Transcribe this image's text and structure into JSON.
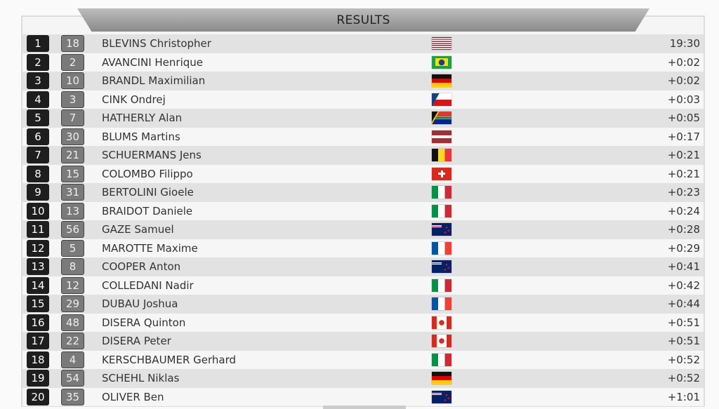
{
  "header": {
    "title": "RESULTS"
  },
  "results": [
    {
      "rank": "1",
      "bib": "18",
      "name": "BLEVINS Christopher",
      "flag": "us",
      "time": "19:30"
    },
    {
      "rank": "2",
      "bib": "2",
      "name": "AVANCINI Henrique",
      "flag": "br",
      "time": "+0:02"
    },
    {
      "rank": "3",
      "bib": "10",
      "name": "BRANDL Maximilian",
      "flag": "de",
      "time": "+0:02"
    },
    {
      "rank": "4",
      "bib": "3",
      "name": "CINK Ondrej",
      "flag": "cz",
      "time": "+0:03"
    },
    {
      "rank": "5",
      "bib": "7",
      "name": "HATHERLY Alan",
      "flag": "za",
      "time": "+0:05"
    },
    {
      "rank": "6",
      "bib": "30",
      "name": "BLUMS Martins",
      "flag": "lv",
      "time": "+0:17"
    },
    {
      "rank": "7",
      "bib": "21",
      "name": "SCHUERMANS Jens",
      "flag": "be",
      "time": "+0:21"
    },
    {
      "rank": "8",
      "bib": "15",
      "name": "COLOMBO Filippo",
      "flag": "ch",
      "time": "+0:21"
    },
    {
      "rank": "9",
      "bib": "31",
      "name": "BERTOLINI Gioele",
      "flag": "it",
      "time": "+0:23"
    },
    {
      "rank": "10",
      "bib": "13",
      "name": "BRAIDOT Daniele",
      "flag": "it",
      "time": "+0:24"
    },
    {
      "rank": "11",
      "bib": "56",
      "name": "GAZE Samuel",
      "flag": "nz",
      "time": "+0:28"
    },
    {
      "rank": "12",
      "bib": "5",
      "name": "MAROTTE Maxime",
      "flag": "fr",
      "time": "+0:29"
    },
    {
      "rank": "13",
      "bib": "8",
      "name": "COOPER Anton",
      "flag": "nz",
      "time": "+0:41"
    },
    {
      "rank": "14",
      "bib": "12",
      "name": "COLLEDANI Nadir",
      "flag": "it",
      "time": "+0:42"
    },
    {
      "rank": "15",
      "bib": "29",
      "name": "DUBAU Joshua",
      "flag": "fr",
      "time": "+0:44"
    },
    {
      "rank": "16",
      "bib": "48",
      "name": "DISERA Quinton",
      "flag": "ca",
      "time": "+0:51"
    },
    {
      "rank": "17",
      "bib": "22",
      "name": "DISERA Peter",
      "flag": "ca",
      "time": "+0:51"
    },
    {
      "rank": "18",
      "bib": "4",
      "name": "KERSCHBAUMER Gerhard",
      "flag": "it",
      "time": "+0:52"
    },
    {
      "rank": "19",
      "bib": "54",
      "name": "SCHEHL Niklas",
      "flag": "de",
      "time": "+0:52"
    },
    {
      "rank": "20",
      "bib": "35",
      "name": "OLIVER Ben",
      "flag": "nz",
      "time": "+1:01"
    }
  ]
}
